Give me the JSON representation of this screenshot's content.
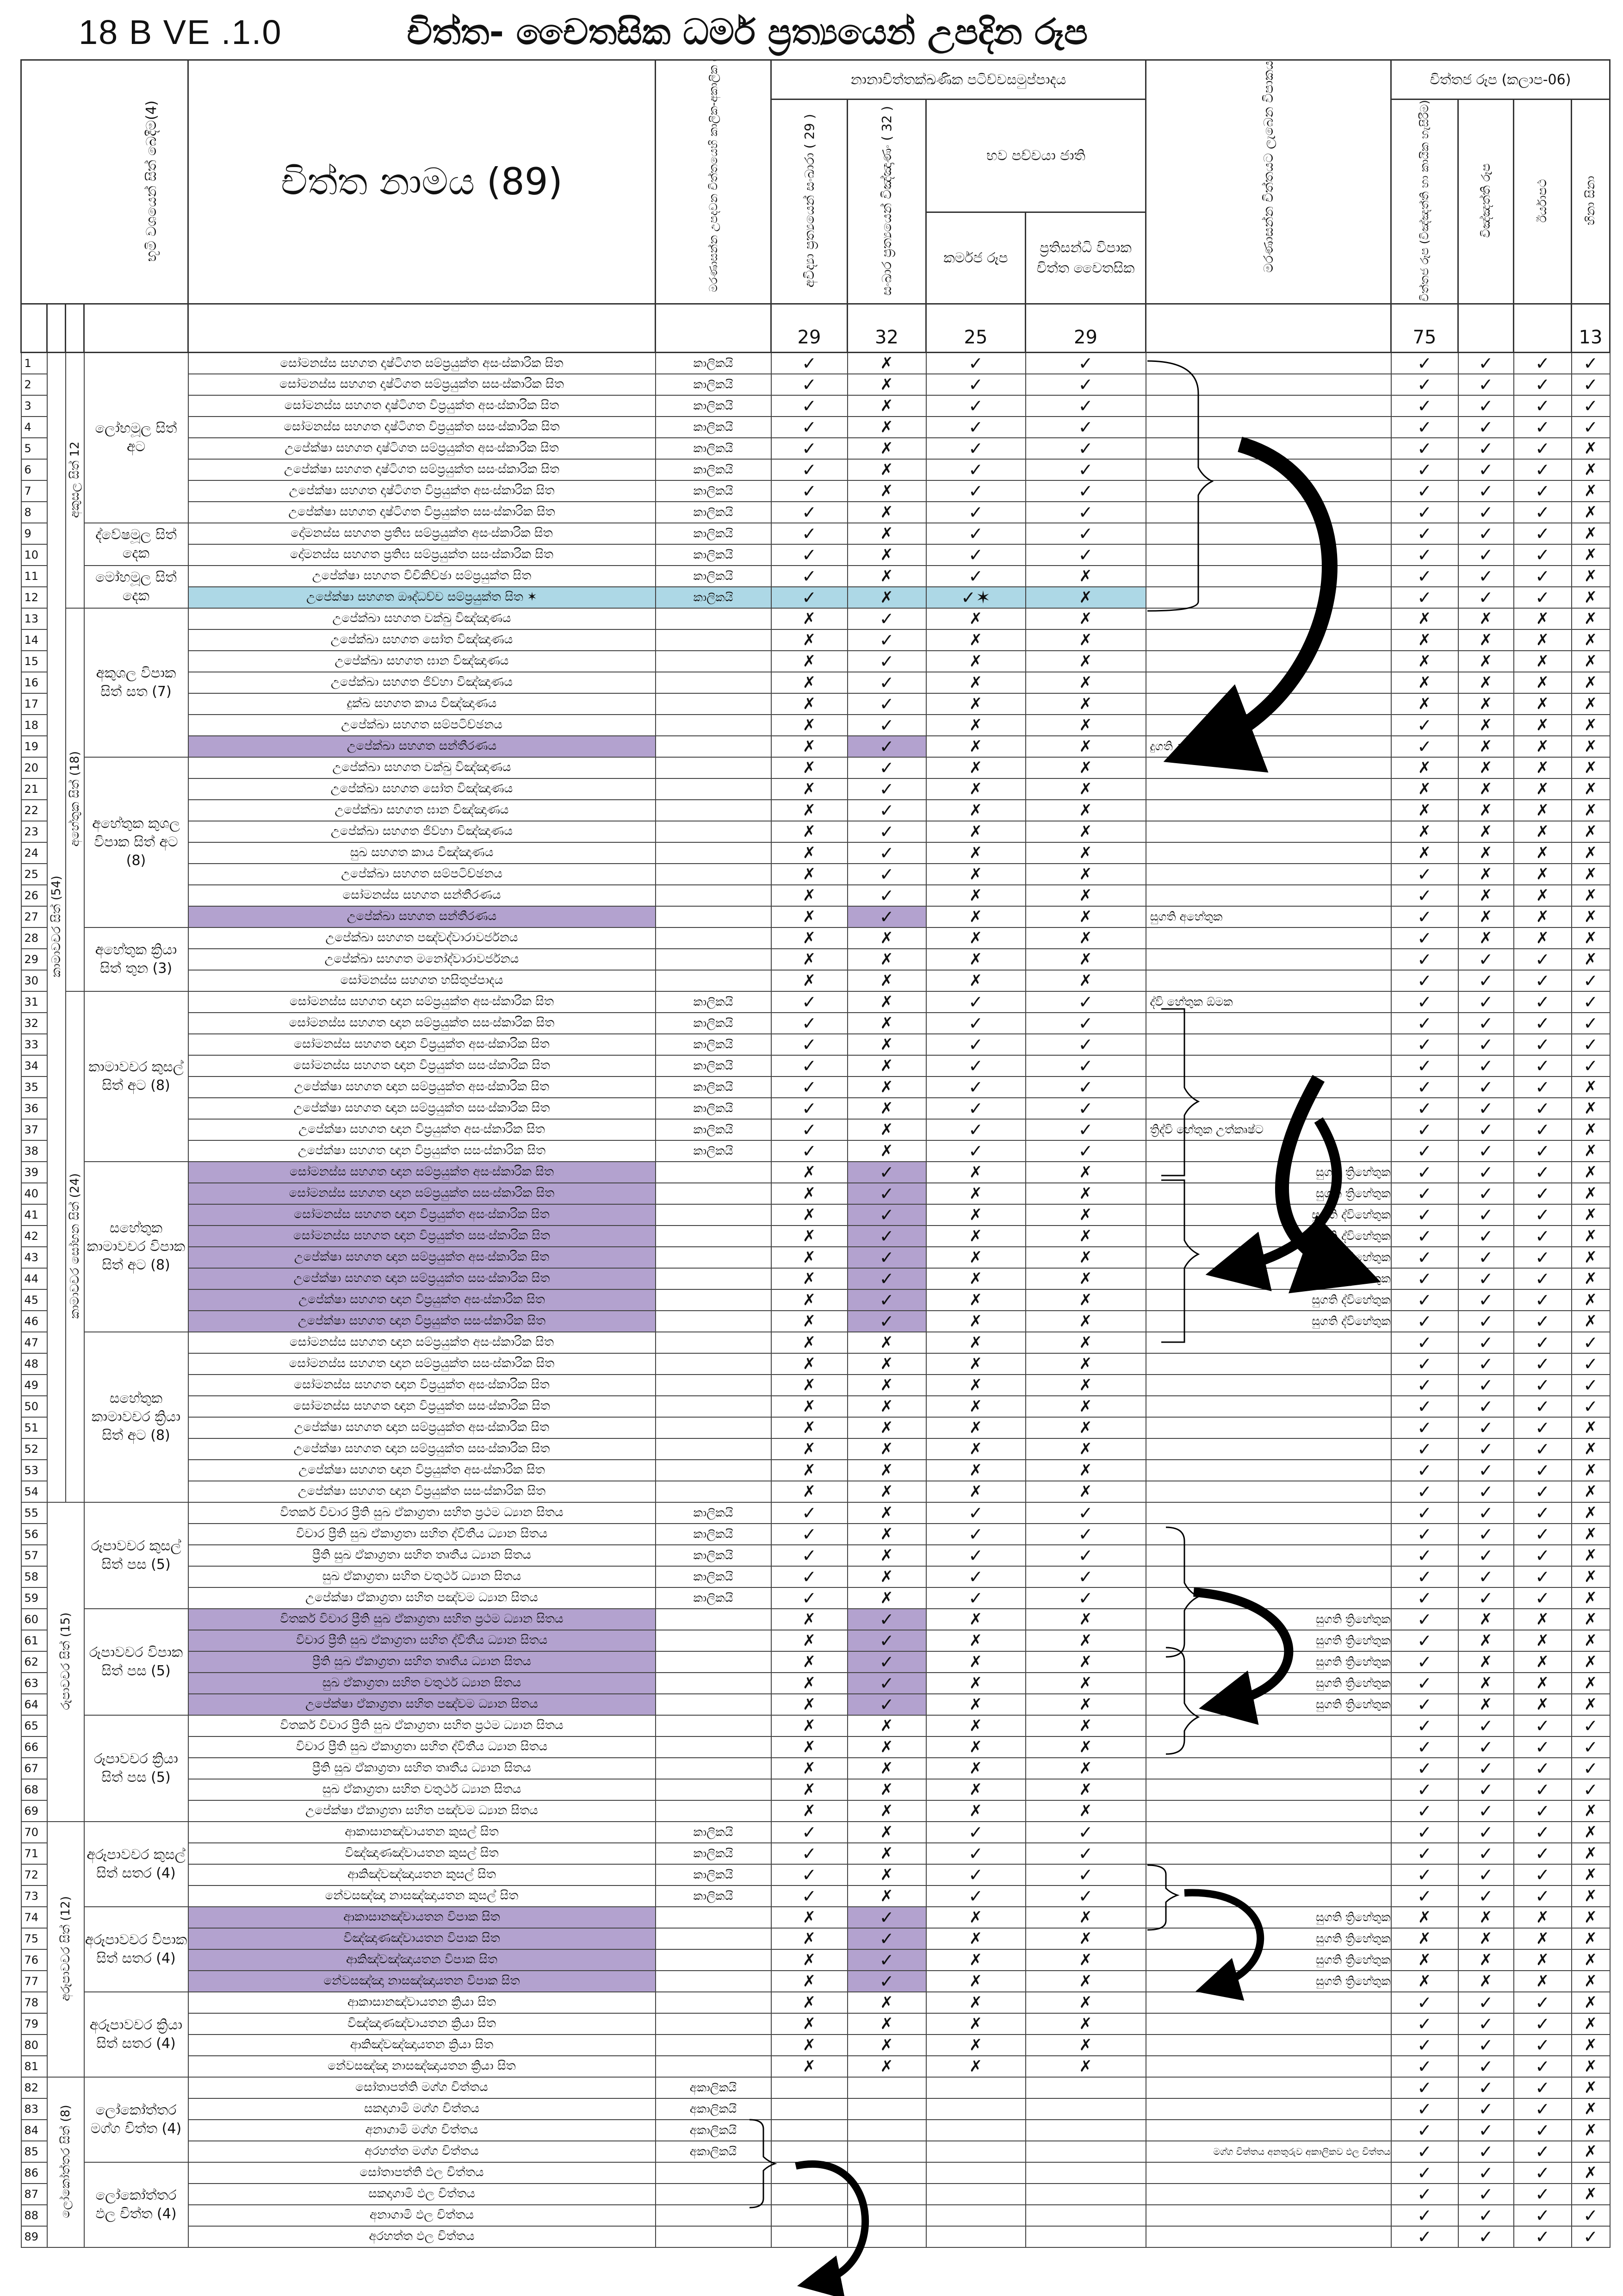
{
  "header": {
    "version": "18 B   VE .1.0",
    "title": "චිත්ත- චෛතසික ධර්ම ප්‍රත්‍යයෙන් උපදින රූප"
  },
  "columns": {
    "bhumi": "භූමි වශයෙන් සිත් බෙදීම(4)",
    "citta_name": "චිත්ත නාමය (89)",
    "kalika": "මරණාසන්න උපදවන චිත්තයෙහි කාලික-අකාලික බව",
    "group_top": "නානාචිත්තක්ඛණික පටිච්චසමුප්පාදය",
    "avidya": "අවිද්‍යා ප්‍රත්‍යයෙන් සංඛාරා ( 29 )",
    "sankhara": "සංඛාර ප්‍රත්‍යයෙන් විඤ්ඤාණං ( 32 )",
    "bhava": "භව පච්චයා ජාති",
    "karmaja": "කර්මජ රූප",
    "pratisandhi": "ප්‍රතිසන්ධි විපාක චිත්ත චෛතසික",
    "marana": "මරණාසන්න චිත්තයට ලැබෙන විපාකය",
    "cittaja_group": "චිත්තජ රූප (කලාප-06)",
    "c1": "චිත්තජ රූප (විඤ්ඤත්ති හා කායික හැසිරීම)",
    "c2": "විඤ්ඤත්ති රූප",
    "c3": "ඊර්යාපථ",
    "c4": "හිනා සිනා"
  },
  "counts": {
    "avidya": "29",
    "sankhara": "32",
    "karmaja": "25",
    "pratisandhi": "29",
    "c1": "75",
    "c2": "",
    "c3": "",
    "c4": "13"
  },
  "marks": {
    "yes": "✓",
    "no": "✗",
    "star": "✓✶"
  },
  "groups": {
    "bhumi1": "කාමාවචර සිත් (54)",
    "bhumi1a": "අකුසල සිත් 12",
    "bhumi1b": "අහේතුක සිත් (18)",
    "bhumi1c": "කාමාවචර සෝභන සිත් (24)",
    "bhumi2": "රූපාවචර සිත් (15)",
    "bhumi3": "අරූපාවචර සිත් (12)",
    "bhumi4": "ලෝකෝත්තර සිත් (8)",
    "g1": "ලෝභමූල සිත් අට",
    "g2": "ද්වේෂමූල සිත් දෙක",
    "g3": "මෝහමූල සිත් දෙක",
    "g4": "අකුශල විපාක සිත් සත (7)",
    "g5": "අහේතුක කුශල විපාක සිත් අට (8)",
    "g6": "අහේතුක ක්‍රියා සිත් තුන (3)",
    "g7": "කාමාවචර කුසල් සිත් අට (8)",
    "g8": "සහේතුක කාමාවචර විපාක සිත් අට (8)",
    "g9": "සහේතුක කාමාවචර ක්‍රියා සිත් අට (8)",
    "g10": "රූපාවචර කුසල් සිත් පස (5)",
    "g11": "රූපාවචර විපාක සිත් පස (5)",
    "g12": "රූපාවචර ක්‍රියා සිත් පස (5)",
    "g13": "අරූපාවචර කුසල් සිත් සතර (4)",
    "g14": "අරූපාවචර විපාක සිත් සතර (4)",
    "g15": "අරූපාවචර ක්‍රියා සිත් සතර (4)",
    "g16": "ලෝකෝත්තර මග්ග චිත්ත (4)",
    "g17": "ලෝකෝත්තර ඵල චිත්ත (4)"
  },
  "notes": {
    "n19": "දුගති අහේතුක",
    "n27": "සුගති අහේතුක",
    "n31": "ද්වි හේතුක ඕමක",
    "n37": "ත්‍රිද්වි හේතුක උත්කෘෂ්ට",
    "tri": "සුගති ත්‍රිහේතුක",
    "dvi": "සුගති ද්විහේතුක",
    "lok": "මග්ග චිත්තය අනතුරුව අකාලිකව ඵල චිත්තය"
  },
  "rows": [
    {
      "n": "1",
      "name": "සෝමනස්ස සහගත දෘෂ්ටිගත සම්ප්‍රයුක්ත අසංස්කාරික සිත",
      "k": "කාලිකයි",
      "v": "ynyy",
      "c": "yyyy"
    },
    {
      "n": "2",
      "name": "සෝමනස්ස සහගත දෘෂ්ටිගත සම්ප්‍රයුක්ත සසංස්කාරික සිත",
      "k": "කාලිකයි",
      "v": "ynyy",
      "c": "yyyy"
    },
    {
      "n": "3",
      "name": "සෝමනස්ස සහගත දෘෂ්ටිගත විප්‍රයුක්ත අසංස්කාරික සිත",
      "k": "කාලිකයි",
      "v": "ynyy",
      "c": "yyyy"
    },
    {
      "n": "4",
      "name": "සෝමනස්ස සහගත දෘෂ්ටිගත විප්‍රයුක්ත සසංස්කාරික සිත",
      "k": "කාලිකයි",
      "v": "ynyy",
      "c": "yyyy"
    },
    {
      "n": "5",
      "name": "උපේක්ෂා සහගත දෘෂ්ටිගත සම්ප්‍රයුක්ත අසංස්කාරික සිත",
      "k": "කාලිකයි",
      "v": "ynyy",
      "c": "yyyn"
    },
    {
      "n": "6",
      "name": "උපේක්ෂා සහගත දෘෂ්ටිගත සම්ප්‍රයුක්ත සසංස්කාරික සිත",
      "k": "කාලිකයි",
      "v": "ynyy",
      "c": "yyyn"
    },
    {
      "n": "7",
      "name": "උපේක්ෂා සහගත දෘෂ්ටිගත විප්‍රයුක්ත අසංස්කාරික සිත",
      "k": "කාලිකයි",
      "v": "ynyy",
      "c": "yyyn"
    },
    {
      "n": "8",
      "name": "උපේක්ෂා සහගත දෘෂ්ටිගත විප්‍රයුක්ත සසංස්කාරික සිත",
      "k": "කාලිකයි",
      "v": "ynyy",
      "c": "yyyn"
    },
    {
      "n": "9",
      "name": "දෝමනස්ස සහගත ප්‍රතිඝ සම්ප්‍රයුක්ත අසංස්කාරික සිත",
      "k": "කාලිකයි",
      "v": "ynyy",
      "c": "yyyn"
    },
    {
      "n": "10",
      "name": "දෝමනස්ස සහගත ප්‍රතිඝ සම්ප්‍රයුක්ත සසංස්කාරික සිත",
      "k": "කාලිකයි",
      "v": "ynyy",
      "c": "yyyn"
    },
    {
      "n": "11",
      "name": "උපේක්ෂා සහගත විචිකිච්ඡා සම්ප්‍රයුක්ත සිත",
      "k": "කාලිකයි",
      "v": "ynyn",
      "c": "yyyn"
    },
    {
      "n": "12",
      "name": "උපේක්ෂා සහගත ඖද්ධච්ච සම්ප්‍රයුක්ත සිත ✶",
      "k": "කාලිකයි",
      "v": "ynsn",
      "c": "yyyn",
      "hl": "blue"
    },
    {
      "n": "13",
      "name": "උපේක්ඛා සහගත චක්ඛු විඤ්ඤාණය",
      "k": "",
      "v": "nynn",
      "c": "nnnn"
    },
    {
      "n": "14",
      "name": "උපේක්ඛා සහගත සෝත විඤ්ඤාණය",
      "k": "",
      "v": "nynn",
      "c": "nnnn"
    },
    {
      "n": "15",
      "name": "උපේක්ඛා සහගත ඝාන විඤ්ඤාණය",
      "k": "",
      "v": "nynn",
      "c": "nnnn"
    },
    {
      "n": "16",
      "name": "උපේක්ඛා සහගත ජිව්හා විඤ්ඤාණය",
      "k": "",
      "v": "nynn",
      "c": "nnnn"
    },
    {
      "n": "17",
      "name": "දුක්ඛ සහගත කාය විඤ්ඤාණය",
      "k": "",
      "v": "nynn",
      "c": "nnnn"
    },
    {
      "n": "18",
      "name": "උපේක්ඛා සහගත සම්පටිච්ඡනය",
      "k": "",
      "v": "nynn",
      "c": "ynnn"
    },
    {
      "n": "19",
      "name": "උපේක්ඛා සහගත සන්තීරණය",
      "k": "",
      "v": "nynn",
      "c": "ynnn",
      "hl": "pur",
      "note": "n19"
    },
    {
      "n": "20",
      "name": "උපේක්ඛා සහගත චක්ඛු විඤ්ඤාණය",
      "k": "",
      "v": "nynn",
      "c": "nnnn"
    },
    {
      "n": "21",
      "name": "උපේක්ඛා සහගත සෝත විඤ්ඤාණය",
      "k": "",
      "v": "nynn",
      "c": "nnnn"
    },
    {
      "n": "22",
      "name": "උපේක්ඛා සහගත ඝාන විඤ්ඤාණය",
      "k": "",
      "v": "nynn",
      "c": "nnnn"
    },
    {
      "n": "23",
      "name": "උපේක්ඛා සහගත ජිව්හා විඤ්ඤාණය",
      "k": "",
      "v": "nynn",
      "c": "nnnn"
    },
    {
      "n": "24",
      "name": "සුඛ සහගත කාය විඤ්ඤාණය",
      "k": "",
      "v": "nynn",
      "c": "nnnn"
    },
    {
      "n": "25",
      "name": "උපේක්ඛා සහගත සම්පටිච්ඡනය",
      "k": "",
      "v": "nynn",
      "c": "ynnn"
    },
    {
      "n": "26",
      "name": "සෝමනස්ස සහගත සන්තීරණය",
      "k": "",
      "v": "nynn",
      "c": "ynnn"
    },
    {
      "n": "27",
      "name": "උපේක්ඛා සහගත සන්තීරණය",
      "k": "",
      "v": "nynn",
      "c": "ynnn",
      "hl": "pur",
      "note": "n27"
    },
    {
      "n": "28",
      "name": "උපේක්ඛා සහගත පඤ්චද්වාරාවර්ජනය",
      "k": "",
      "v": "nnnn",
      "c": "ynnn"
    },
    {
      "n": "29",
      "name": "උපේක්ඛා සහගත මනෝද්වාරාවර්ජනය",
      "k": "",
      "v": "nnnn",
      "c": "yyyn"
    },
    {
      "n": "30",
      "name": "සෝමනස්ස සහගත හසිතුප්පාදය",
      "k": "",
      "v": "nnnn",
      "c": "yyyy"
    },
    {
      "n": "31",
      "name": "සෝමනස්ස සහගත ඥාන සම්ප්‍රයුක්ත අසංස්කාරික සිත",
      "k": "කාලිකයි",
      "v": "ynyy",
      "c": "yyyy",
      "note": "n31"
    },
    {
      "n": "32",
      "name": "සෝමනස්ස සහගත ඥාන සම්ප්‍රයුක්ත සසංස්කාරික සිත",
      "k": "කාලිකයි",
      "v": "ynyy",
      "c": "yyyy"
    },
    {
      "n": "33",
      "name": "සෝමනස්ස සහගත ඥාන විප්‍රයුක්ත අසංස්කාරික සිත",
      "k": "කාලිකයි",
      "v": "ynyy",
      "c": "yyyy"
    },
    {
      "n": "34",
      "name": "සෝමනස්ස සහගත ඥාන විප්‍රයුක්ත සසංස්කාරික සිත",
      "k": "කාලිකයි",
      "v": "ynyy",
      "c": "yyyy"
    },
    {
      "n": "35",
      "name": "උපේක්ෂා සහගත ඥාන සම්ප්‍රයුක්ත අසංස්කාරික සිත",
      "k": "කාලිකයි",
      "v": "ynyy",
      "c": "yyyn"
    },
    {
      "n": "36",
      "name": "උපේක්ෂා සහගත ඥාන සම්ප්‍රයුක්ත සසංස්කාරික සිත",
      "k": "කාලිකයි",
      "v": "ynyy",
      "c": "yyyn"
    },
    {
      "n": "37",
      "name": "උපේක්ෂා සහගත ඥාන විප්‍රයුක්ත අසංස්කාරික සිත",
      "k": "කාලිකයි",
      "v": "ynyy",
      "c": "yyyn",
      "note": "n37"
    },
    {
      "n": "38",
      "name": "උපේක්ෂා සහගත ඥාන විප්‍රයුක්ත සසංස්කාරික සිත",
      "k": "කාලිකයි",
      "v": "ynyy",
      "c": "yyyn"
    },
    {
      "n": "39",
      "name": "සෝමනස්ස සහගත ඥාන සම්ප්‍රයුක්ත අසංස්කාරික සිත",
      "k": "",
      "v": "nynn",
      "c": "yyyn",
      "hl": "pur",
      "note": "tri"
    },
    {
      "n": "40",
      "name": "සෝමනස්ස සහගත ඥාන සම්ප්‍රයුක්ත සසංස්කාරික සිත",
      "k": "",
      "v": "nynn",
      "c": "yyyn",
      "hl": "pur",
      "note": "tri"
    },
    {
      "n": "41",
      "name": "සෝමනස්ස සහගත ඥාන විප්‍රයුක්ත අසංස්කාරික සිත",
      "k": "",
      "v": "nynn",
      "c": "yyyn",
      "hl": "pur",
      "note": "dvi"
    },
    {
      "n": "42",
      "name": "සෝමනස්ස සහගත ඥාන විප්‍රයුක්ත සසංස්කාරික සිත",
      "k": "",
      "v": "nynn",
      "c": "yyyn",
      "hl": "pur",
      "note": "dvi"
    },
    {
      "n": "43",
      "name": "උපේක්ෂා සහගත ඥාන සම්ප්‍රයුක්ත අසංස්කාරික සිත",
      "k": "",
      "v": "nynn",
      "c": "yyyn",
      "hl": "pur",
      "note": "tri"
    },
    {
      "n": "44",
      "name": "උපේක්ෂා සහගත ඥාන සම්ප්‍රයුක්ත සසංස්කාරික සිත",
      "k": "",
      "v": "nynn",
      "c": "yyyn",
      "hl": "pur",
      "note": "tri"
    },
    {
      "n": "45",
      "name": "උපේක්ෂා සහගත ඥාන විප්‍රයුක්ත අසංස්කාරික සිත",
      "k": "",
      "v": "nynn",
      "c": "yyyn",
      "hl": "pur",
      "note": "dvi"
    },
    {
      "n": "46",
      "name": "උපේක්ෂා සහගත ඥාන විප්‍රයුක්ත සසංස්කාරික සිත",
      "k": "",
      "v": "nynn",
      "c": "yyyn",
      "hl": "pur",
      "note": "dvi"
    },
    {
      "n": "47",
      "name": "සෝමනස්ස සහගත ඥාන සම්ප්‍රයුක්ත අසංස්කාරික සිත",
      "k": "",
      "v": "nnnn",
      "c": "yyyy"
    },
    {
      "n": "48",
      "name": "සෝමනස්ස සහගත ඥාන සම්ප්‍රයුක්ත සසංස්කාරික සිත",
      "k": "",
      "v": "nnnn",
      "c": "yyyy"
    },
    {
      "n": "49",
      "name": "සෝමනස්ස සහගත ඥාන විප්‍රයුක්ත අසංස්කාරික සිත",
      "k": "",
      "v": "nnnn",
      "c": "yyyy"
    },
    {
      "n": "50",
      "name": "සෝමනස්ස සහගත ඥාන විප්‍රයුක්ත සසංස්කාරික සිත",
      "k": "",
      "v": "nnnn",
      "c": "yyyy"
    },
    {
      "n": "51",
      "name": "උපේක්ෂා සහගත ඥාන සම්ප්‍රයුක්ත අසංස්කාරික සිත",
      "k": "",
      "v": "nnnn",
      "c": "yyyn"
    },
    {
      "n": "52",
      "name": "උපේක්ෂා සහගත ඥාන සම්ප්‍රයුක්ත සසංස්කාරික සිත",
      "k": "",
      "v": "nnnn",
      "c": "yyyn"
    },
    {
      "n": "53",
      "name": "උපේක්ෂා සහගත ඥාන විප්‍රයුක්ත අසංස්කාරික සිත",
      "k": "",
      "v": "nnnn",
      "c": "yyyn"
    },
    {
      "n": "54",
      "name": "උපේක්ෂා සහගත ඥාන විප්‍රයුක්ත සසංස්කාරික සිත",
      "k": "",
      "v": "nnnn",
      "c": "yyyn"
    },
    {
      "n": "55",
      "name": "විතර්ක විචාර ප්‍රීති සුඛ ඒකාග්‍රතා සහිත ප්‍රථම ධ්‍යාන සිතය",
      "k": "කාලිකයි",
      "v": "ynyy",
      "c": "yyyn"
    },
    {
      "n": "56",
      "name": "විචාර ප්‍රීති සුඛ ඒකාග්‍රතා සහිත ද්විතීය ධ්‍යාන සිතය",
      "k": "කාලිකයි",
      "v": "ynyy",
      "c": "yyyn"
    },
    {
      "n": "57",
      "name": "ප්‍රීති සුඛ ඒකාග්‍රතා සහිත තෘතීය ධ්‍යාන සිතය",
      "k": "කාලිකයි",
      "v": "ynyy",
      "c": "yyyn"
    },
    {
      "n": "58",
      "name": "සුඛ ඒකාග්‍රතා සහිත චතුර්ථ ධ්‍යාන සිතය",
      "k": "කාලිකයි",
      "v": "ynyy",
      "c": "yyyn"
    },
    {
      "n": "59",
      "name": "උපේක්ෂා ඒකාග්‍රතා සහිත පඤ්චම ධ්‍යාන සිතය",
      "k": "කාලිකයි",
      "v": "ynyy",
      "c": "yyyn"
    },
    {
      "n": "60",
      "name": "විතර්ක විචාර ප්‍රීති සුඛ ඒකාග්‍රතා සහිත ප්‍රථම ධ්‍යාන සිතය",
      "k": "",
      "v": "nynn",
      "c": "ynnn",
      "hl": "pur",
      "note": "tri"
    },
    {
      "n": "61",
      "name": "විචාර ප්‍රීති සුඛ ඒකාග්‍රතා සහිත ද්විතීය ධ්‍යාන සිතය",
      "k": "",
      "v": "nynn",
      "c": "ynnn",
      "hl": "pur",
      "note": "tri"
    },
    {
      "n": "62",
      "name": "ප්‍රීති සුඛ ඒකාග්‍රතා සහිත තෘතීය ධ්‍යාන සිතය",
      "k": "",
      "v": "nynn",
      "c": "ynnn",
      "hl": "pur",
      "note": "tri"
    },
    {
      "n": "63",
      "name": "සුඛ ඒකාග්‍රතා සහිත චතුර්ථ ධ්‍යාන සිතය",
      "k": "",
      "v": "nynn",
      "c": "ynnn",
      "hl": "pur",
      "note": "tri"
    },
    {
      "n": "64",
      "name": "උපේක්ෂා ඒකාග්‍රතා සහිත පඤ්චම ධ්‍යාන සිතය",
      "k": "",
      "v": "nynn",
      "c": "ynnn",
      "hl": "pur",
      "note": "tri"
    },
    {
      "n": "65",
      "name": "විතර්ක විචාර ප්‍රීති සුඛ ඒකාග්‍රතා සහිත ප්‍රථම ධ්‍යාන සිතය",
      "k": "",
      "v": "nnnn",
      "c": "yyyy"
    },
    {
      "n": "66",
      "name": "විචාර ප්‍රීති සුඛ ඒකාග්‍රතා සහිත ද්විතීය ධ්‍යාන සිතය",
      "k": "",
      "v": "nnnn",
      "c": "yyyy"
    },
    {
      "n": "67",
      "name": "ප්‍රීති සුඛ ඒකාග්‍රතා සහිත තෘතීය ධ්‍යාන සිතය",
      "k": "",
      "v": "nnnn",
      "c": "yyyy"
    },
    {
      "n": "68",
      "name": "සුඛ ඒකාග්‍රතා සහිත චතුර්ථ ධ්‍යාන සිතය",
      "k": "",
      "v": "nnnn",
      "c": "yyyy"
    },
    {
      "n": "69",
      "name": "උපේක්ෂා ඒකාග්‍රතා සහිත පඤ්චම ධ්‍යාන සිතය",
      "k": "",
      "v": "nnnn",
      "c": "yyyn"
    },
    {
      "n": "70",
      "name": "ආකාසානඤ්චායතන කුසල් සිත",
      "k": "කාලිකයි",
      "v": "ynyy",
      "c": "yyyn"
    },
    {
      "n": "71",
      "name": "විඤ්ඤාණඤ්චායතන කුසල් සිත",
      "k": "කාලිකයි",
      "v": "ynyy",
      "c": "yyyn"
    },
    {
      "n": "72",
      "name": "ආකිඤ්චඤ්ඤායතන කුසල් සිත",
      "k": "කාලිකයි",
      "v": "ynyy",
      "c": "yyyn"
    },
    {
      "n": "73",
      "name": "නේවසඤ්ඤා නාසඤ්ඤායතන කුසල් සිත",
      "k": "කාලිකයි",
      "v": "ynyy",
      "c": "yyyn"
    },
    {
      "n": "74",
      "name": "ආකාසානඤ්චායතන විපාක සිත",
      "k": "",
      "v": "nynn",
      "c": "nnnn",
      "hl": "pur",
      "note": "tri"
    },
    {
      "n": "75",
      "name": "විඤ්ඤාණඤ්චායතන විපාක සිත",
      "k": "",
      "v": "nynn",
      "c": "nnnn",
      "hl": "pur",
      "note": "tri"
    },
    {
      "n": "76",
      "name": "ආකිඤ්චඤ්ඤායතන විපාක සිත",
      "k": "",
      "v": "nynn",
      "c": "nnnn",
      "hl": "pur",
      "note": "tri"
    },
    {
      "n": "77",
      "name": "නේවසඤ්ඤා නාසඤ්ඤායතන විපාක සිත",
      "k": "",
      "v": "nynn",
      "c": "nnnn",
      "hl": "pur",
      "note": "tri"
    },
    {
      "n": "78",
      "name": "ආකාසානඤ්චායතන ක්‍රියා සිත",
      "k": "",
      "v": "nnnn",
      "c": "yyyn"
    },
    {
      "n": "79",
      "name": "විඤ්ඤාණඤ්චායතන ක්‍රියා සිත",
      "k": "",
      "v": "nnnn",
      "c": "yyyn"
    },
    {
      "n": "80",
      "name": "ආකිඤ්චඤ්ඤායතන ක්‍රියා සිත",
      "k": "",
      "v": "nnnn",
      "c": "yyyn"
    },
    {
      "n": "81",
      "name": "නේවසඤ්ඤා නාසඤ්ඤායතන ක්‍රියා සිත",
      "k": "",
      "v": "nnnn",
      "c": "yyyn"
    },
    {
      "n": "82",
      "name": "සෝතාපත්ති මග්ග චිත්තය",
      "k": "අකාලිකයි",
      "v": "____",
      "c": "yyyn"
    },
    {
      "n": "83",
      "name": "සකදාගාමි මග්ග චිත්තය",
      "k": "අකාලිකයි",
      "v": "____",
      "c": "yyyn"
    },
    {
      "n": "84",
      "name": "අනාගාමි මග්ග චිත්තය",
      "k": "අකාලිකයි",
      "v": "____",
      "c": "yyyn"
    },
    {
      "n": "85",
      "name": "අරහත්ත මග්ග චිත්තය",
      "k": "අකාලිකයි",
      "v": "____",
      "c": "yyyn",
      "note": "lok"
    },
    {
      "n": "86",
      "name": "සෝතාපත්ති ඵල චිත්තය",
      "k": "",
      "v": "____",
      "c": "yyyn"
    },
    {
      "n": "87",
      "name": "සකදාගාමි ඵල චිත්තය",
      "k": "",
      "v": "____",
      "c": "yyyn"
    },
    {
      "n": "88",
      "name": "අනාගාමි ඵල චිත්තය",
      "k": "",
      "v": "____",
      "c": "yyyy"
    },
    {
      "n": "89",
      "name": "අරහත්ත ඵල චිත්තය",
      "k": "",
      "v": "____",
      "c": "yyyy"
    }
  ]
}
